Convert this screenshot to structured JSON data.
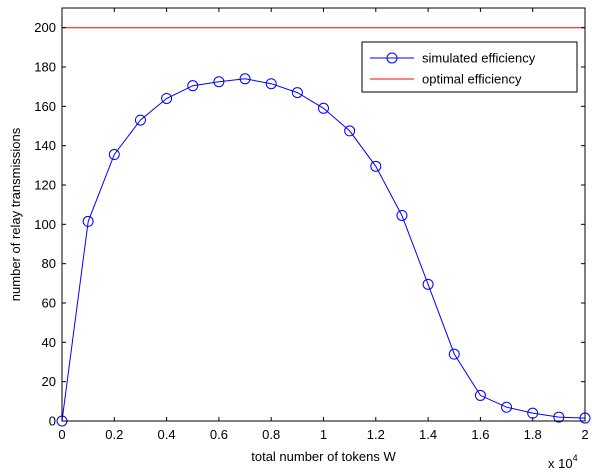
{
  "chart_data": {
    "type": "line",
    "xlabel": "total number of tokens W",
    "ylabel": "number of relay transmissions",
    "x_multiplier_base": "x 10",
    "x_multiplier_exp": "4",
    "xlim": [
      0,
      2
    ],
    "ylim": [
      0,
      210
    ],
    "xticks": [
      0,
      0.2,
      0.4,
      0.6,
      0.8,
      1,
      1.2,
      1.4,
      1.6,
      1.8,
      2
    ],
    "xtick_labels": [
      "0",
      "0.2",
      "0.4",
      "0.6",
      "0.8",
      "1",
      "1.2",
      "1.4",
      "1.6",
      "1.8",
      "2"
    ],
    "yticks": [
      0,
      20,
      40,
      60,
      80,
      100,
      120,
      140,
      160,
      180,
      200
    ],
    "ytick_labels": [
      "0",
      "20",
      "40",
      "60",
      "80",
      "100",
      "120",
      "140",
      "160",
      "180",
      "200"
    ],
    "grid": false,
    "legend_position": "top-right",
    "series": [
      {
        "name": "simulated efficiency",
        "color": "#0000ff",
        "marker": "circle",
        "x": [
          0,
          0.1,
          0.2,
          0.3,
          0.4,
          0.5,
          0.6,
          0.7,
          0.8,
          0.9,
          1.0,
          1.1,
          1.2,
          1.3,
          1.4,
          1.5,
          1.6,
          1.7,
          1.8,
          1.9,
          2.0
        ],
        "y": [
          0,
          101.5,
          135.5,
          153,
          164,
          170.5,
          172.5,
          174,
          171.5,
          167,
          159,
          147.5,
          129.5,
          104.5,
          69.5,
          34,
          13,
          7,
          4,
          2,
          1.5
        ]
      },
      {
        "name": "optimal efficiency",
        "color": "#ff0000",
        "marker": "none",
        "x": [
          0,
          2
        ],
        "y": [
          200,
          200
        ]
      }
    ]
  }
}
